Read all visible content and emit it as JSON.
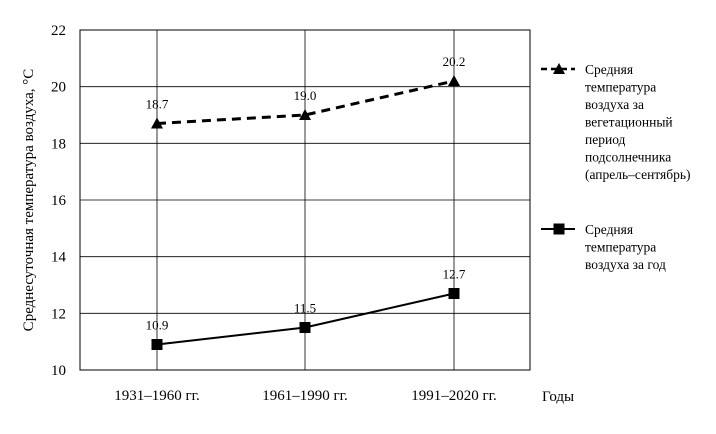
{
  "chart_data": {
    "type": "line",
    "categories": [
      "1931–1960 гг.",
      "1961–1990 гг.",
      "1991–2020 гг."
    ],
    "xlabel": "Годы",
    "ylabel": "Среднесуточная температура воздуха, °С",
    "ylim": [
      10,
      22
    ],
    "yticks": [
      10,
      12,
      14,
      16,
      18,
      20,
      22
    ],
    "ytick_labels": [
      "10",
      "12",
      "14",
      "16",
      "18",
      "20",
      "22"
    ],
    "grid": "horizontal and vertical",
    "legend_position": "right",
    "series": [
      {
        "name_lines": [
          "Средняя",
          "температура",
          "воздуха за",
          "вегетационный",
          "период",
          "подсолнечника",
          "(апрель–сентябрь)"
        ],
        "values": [
          18.7,
          19.0,
          20.2
        ],
        "labels": [
          "18.7",
          "19.0",
          "20.2"
        ],
        "line_style": "dashed",
        "marker": "triangle",
        "color": "#000000"
      },
      {
        "name_lines": [
          "Средняя",
          "температура",
          "воздуха за год"
        ],
        "values": [
          10.9,
          11.5,
          12.7
        ],
        "labels": [
          "10.9",
          "11.5",
          "12.7"
        ],
        "line_style": "solid",
        "marker": "square",
        "color": "#000000"
      }
    ]
  }
}
